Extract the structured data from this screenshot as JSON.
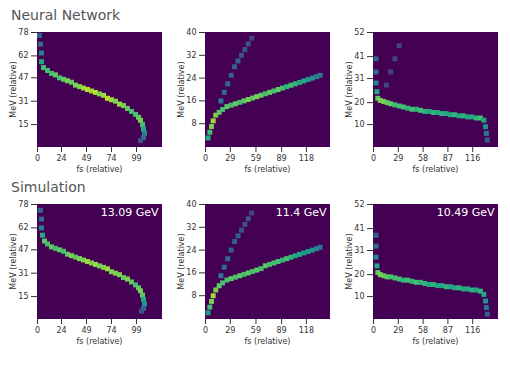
{
  "chart_data": [
    {
      "type": "heatmap",
      "title": "Neural Network",
      "x_label": "fs (relative)",
      "y_label": "MeV (relative)",
      "xlim": [
        0,
        124
      ],
      "ylim": [
        0,
        78
      ],
      "xticks": [
        0,
        24,
        49,
        74,
        99
      ],
      "yticks": [
        15,
        31,
        47,
        62,
        78
      ],
      "color": "viridis",
      "color_range": [
        0,
        1
      ],
      "cells": [
        [
          2,
          76,
          0.3
        ],
        [
          3,
          70,
          0.35
        ],
        [
          4,
          64,
          0.45
        ],
        [
          4,
          58,
          0.6
        ],
        [
          6,
          54,
          0.7
        ],
        [
          10,
          52,
          0.7
        ],
        [
          14,
          50,
          0.7
        ],
        [
          18,
          49,
          0.75
        ],
        [
          22,
          47,
          0.7
        ],
        [
          26,
          46,
          0.75
        ],
        [
          30,
          45,
          0.8
        ],
        [
          34,
          44,
          0.75
        ],
        [
          38,
          42,
          0.8
        ],
        [
          42,
          41,
          0.8
        ],
        [
          46,
          40,
          0.85
        ],
        [
          50,
          39,
          0.9
        ],
        [
          54,
          38,
          0.85
        ],
        [
          58,
          37,
          0.9
        ],
        [
          62,
          36,
          0.8
        ],
        [
          66,
          35,
          0.85
        ],
        [
          70,
          33,
          0.9
        ],
        [
          74,
          32,
          0.85
        ],
        [
          78,
          31,
          0.8
        ],
        [
          82,
          29,
          0.85
        ],
        [
          86,
          28,
          0.8
        ],
        [
          90,
          26,
          0.75
        ],
        [
          94,
          24,
          0.7
        ],
        [
          98,
          22,
          0.7
        ],
        [
          101,
          20,
          0.75
        ],
        [
          103,
          18,
          0.8
        ],
        [
          105,
          15,
          0.7
        ],
        [
          106,
          12,
          0.6
        ],
        [
          107,
          9,
          0.45
        ],
        [
          106,
          6,
          0.35
        ],
        [
          103,
          4,
          0.25
        ]
      ]
    },
    {
      "type": "heatmap",
      "x_label": "fs (relative)",
      "y_label": "MeV (relative)",
      "xlim": [
        0,
        145
      ],
      "ylim": [
        0,
        40
      ],
      "xticks": [
        0,
        29,
        59,
        89,
        118
      ],
      "yticks": [
        8,
        16,
        24,
        32,
        40
      ],
      "color": "viridis",
      "color_range": [
        0,
        1
      ],
      "cells": [
        [
          3,
          3,
          0.6
        ],
        [
          5,
          5,
          0.7
        ],
        [
          7,
          7,
          0.8
        ],
        [
          9,
          9,
          0.85
        ],
        [
          12,
          11,
          0.8
        ],
        [
          16,
          12,
          0.75
        ],
        [
          20,
          13,
          0.7
        ],
        [
          25,
          14,
          0.75
        ],
        [
          30,
          14.5,
          0.7
        ],
        [
          35,
          15,
          0.75
        ],
        [
          40,
          15.5,
          0.7
        ],
        [
          45,
          16,
          0.75
        ],
        [
          50,
          16.5,
          0.8
        ],
        [
          55,
          17,
          0.75
        ],
        [
          60,
          17.5,
          0.8
        ],
        [
          65,
          18,
          0.75
        ],
        [
          70,
          18.5,
          0.7
        ],
        [
          75,
          19,
          0.75
        ],
        [
          80,
          19.5,
          0.7
        ],
        [
          85,
          20,
          0.75
        ],
        [
          90,
          20.5,
          0.7
        ],
        [
          95,
          21,
          0.65
        ],
        [
          100,
          21.5,
          0.7
        ],
        [
          105,
          22,
          0.65
        ],
        [
          110,
          22.5,
          0.6
        ],
        [
          115,
          23,
          0.6
        ],
        [
          120,
          23.5,
          0.55
        ],
        [
          125,
          24,
          0.5
        ],
        [
          130,
          24.5,
          0.45
        ],
        [
          134,
          25,
          0.4
        ],
        [
          18,
          16,
          0.4
        ],
        [
          22,
          19,
          0.35
        ],
        [
          26,
          22,
          0.35
        ],
        [
          30,
          25,
          0.3
        ],
        [
          34,
          28,
          0.3
        ],
        [
          38,
          30,
          0.3
        ],
        [
          42,
          32,
          0.25
        ],
        [
          46,
          34,
          0.25
        ],
        [
          50,
          36,
          0.25
        ],
        [
          54,
          38,
          0.2
        ]
      ]
    },
    {
      "type": "heatmap",
      "x_label": "fs (relative)",
      "y_label": "MeV (relative)",
      "xlim": [
        0,
        145
      ],
      "ylim": [
        0,
        52
      ],
      "xticks": [
        0,
        29,
        58,
        87,
        116
      ],
      "yticks": [
        10,
        20,
        31,
        41,
        52
      ],
      "color": "viridis",
      "color_range": [
        0,
        1
      ],
      "cells": [
        [
          3,
          40,
          0.3
        ],
        [
          3,
          34,
          0.35
        ],
        [
          3,
          29,
          0.45
        ],
        [
          4,
          25,
          0.6
        ],
        [
          5,
          22,
          0.75
        ],
        [
          8,
          21,
          0.8
        ],
        [
          12,
          20.5,
          0.8
        ],
        [
          16,
          20,
          0.75
        ],
        [
          20,
          19.5,
          0.75
        ],
        [
          25,
          19,
          0.7
        ],
        [
          30,
          18.5,
          0.7
        ],
        [
          35,
          18,
          0.7
        ],
        [
          40,
          17.5,
          0.65
        ],
        [
          45,
          17,
          0.7
        ],
        [
          50,
          17,
          0.65
        ],
        [
          55,
          16.5,
          0.7
        ],
        [
          60,
          16,
          0.65
        ],
        [
          65,
          16,
          0.6
        ],
        [
          70,
          15.5,
          0.65
        ],
        [
          75,
          15.5,
          0.6
        ],
        [
          80,
          15,
          0.65
        ],
        [
          85,
          15,
          0.6
        ],
        [
          90,
          14.5,
          0.6
        ],
        [
          95,
          14.5,
          0.65
        ],
        [
          100,
          14,
          0.6
        ],
        [
          105,
          14,
          0.65
        ],
        [
          110,
          13.5,
          0.6
        ],
        [
          115,
          13.5,
          0.6
        ],
        [
          120,
          13,
          0.65
        ],
        [
          125,
          13,
          0.7
        ],
        [
          129,
          12,
          0.6
        ],
        [
          131,
          9,
          0.5
        ],
        [
          132,
          6,
          0.4
        ],
        [
          133,
          3,
          0.3
        ],
        [
          15,
          28,
          0.2
        ],
        [
          20,
          34,
          0.2
        ],
        [
          25,
          40,
          0.2
        ],
        [
          30,
          46,
          0.2
        ]
      ]
    },
    {
      "type": "heatmap",
      "title": "Simulation",
      "annotation": "13.09 GeV",
      "x_label": "fs (relative)",
      "y_label": "MeV (relative)",
      "xlim": [
        0,
        124
      ],
      "ylim": [
        0,
        78
      ],
      "xticks": [
        0,
        24,
        49,
        74,
        99
      ],
      "yticks": [
        15,
        31,
        47,
        62,
        78
      ],
      "color": "viridis",
      "color_range": [
        0,
        1
      ],
      "cells": [
        [
          3,
          74,
          0.3
        ],
        [
          4,
          68,
          0.35
        ],
        [
          4,
          62,
          0.45
        ],
        [
          5,
          57,
          0.6
        ],
        [
          7,
          53,
          0.75
        ],
        [
          10,
          51,
          0.7
        ],
        [
          14,
          49,
          0.75
        ],
        [
          18,
          48,
          0.7
        ],
        [
          22,
          47,
          0.75
        ],
        [
          26,
          46,
          0.7
        ],
        [
          30,
          44,
          0.75
        ],
        [
          34,
          43,
          0.8
        ],
        [
          38,
          42,
          0.75
        ],
        [
          42,
          41,
          0.8
        ],
        [
          46,
          40,
          0.8
        ],
        [
          50,
          39,
          0.85
        ],
        [
          54,
          38,
          0.8
        ],
        [
          58,
          37,
          0.85
        ],
        [
          62,
          36,
          0.8
        ],
        [
          66,
          35,
          0.8
        ],
        [
          70,
          34,
          0.85
        ],
        [
          74,
          32,
          0.8
        ],
        [
          78,
          31,
          0.8
        ],
        [
          82,
          30,
          0.8
        ],
        [
          86,
          28,
          0.75
        ],
        [
          90,
          27,
          0.8
        ],
        [
          94,
          25,
          0.75
        ],
        [
          98,
          23,
          0.7
        ],
        [
          101,
          21,
          0.75
        ],
        [
          103,
          19,
          0.8
        ],
        [
          105,
          16,
          0.75
        ],
        [
          106,
          13,
          0.6
        ],
        [
          107,
          10,
          0.5
        ],
        [
          106,
          7,
          0.35
        ],
        [
          104,
          5,
          0.25
        ]
      ]
    },
    {
      "type": "heatmap",
      "annotation": "11.4 GeV",
      "x_label": "fs (relative)",
      "y_label": "MeV (relative)",
      "xlim": [
        0,
        145
      ],
      "ylim": [
        0,
        40
      ],
      "xticks": [
        0,
        29,
        59,
        89,
        118
      ],
      "yticks": [
        8,
        16,
        24,
        32,
        40
      ],
      "color": "viridis",
      "color_range": [
        0,
        1
      ],
      "cells": [
        [
          3,
          2,
          0.55
        ],
        [
          5,
          4,
          0.7
        ],
        [
          7,
          6,
          0.8
        ],
        [
          9,
          8,
          0.85
        ],
        [
          12,
          10,
          0.8
        ],
        [
          16,
          11.5,
          0.75
        ],
        [
          20,
          12.5,
          0.7
        ],
        [
          25,
          13.5,
          0.7
        ],
        [
          30,
          14,
          0.75
        ],
        [
          35,
          14.5,
          0.7
        ],
        [
          40,
          15,
          0.75
        ],
        [
          45,
          15.5,
          0.7
        ],
        [
          50,
          16,
          0.75
        ],
        [
          55,
          16.5,
          0.7
        ],
        [
          60,
          17,
          0.75
        ],
        [
          65,
          17.5,
          0.7
        ],
        [
          70,
          18.5,
          0.75
        ],
        [
          75,
          19,
          0.7
        ],
        [
          80,
          19.5,
          0.7
        ],
        [
          85,
          20,
          0.7
        ],
        [
          90,
          20.5,
          0.65
        ],
        [
          95,
          21,
          0.7
        ],
        [
          100,
          21.5,
          0.65
        ],
        [
          105,
          22,
          0.6
        ],
        [
          110,
          22.5,
          0.6
        ],
        [
          115,
          23,
          0.55
        ],
        [
          120,
          23.5,
          0.55
        ],
        [
          125,
          24,
          0.5
        ],
        [
          130,
          24.5,
          0.45
        ],
        [
          134,
          25,
          0.4
        ],
        [
          18,
          15,
          0.4
        ],
        [
          22,
          18,
          0.35
        ],
        [
          26,
          21,
          0.35
        ],
        [
          30,
          24,
          0.3
        ],
        [
          34,
          27,
          0.3
        ],
        [
          38,
          29,
          0.3
        ],
        [
          42,
          31,
          0.25
        ],
        [
          46,
          33,
          0.25
        ],
        [
          50,
          35,
          0.25
        ],
        [
          54,
          37,
          0.2
        ]
      ]
    },
    {
      "type": "heatmap",
      "annotation": "10.49 GeV",
      "x_label": "fs (relative)",
      "y_label": "MeV (relative)",
      "xlim": [
        0,
        145
      ],
      "ylim": [
        0,
        52
      ],
      "xticks": [
        0,
        29,
        58,
        87,
        116
      ],
      "yticks": [
        10,
        20,
        31,
        41,
        52
      ],
      "color": "viridis",
      "color_range": [
        0,
        1
      ],
      "cells": [
        [
          3,
          38,
          0.3
        ],
        [
          3,
          33,
          0.35
        ],
        [
          3,
          28,
          0.45
        ],
        [
          4,
          24,
          0.6
        ],
        [
          5,
          21,
          0.75
        ],
        [
          8,
          20,
          0.8
        ],
        [
          12,
          19.5,
          0.75
        ],
        [
          16,
          19,
          0.75
        ],
        [
          20,
          19,
          0.7
        ],
        [
          25,
          18.5,
          0.7
        ],
        [
          30,
          18,
          0.7
        ],
        [
          35,
          17.5,
          0.65
        ],
        [
          40,
          17.5,
          0.7
        ],
        [
          45,
          17,
          0.65
        ],
        [
          50,
          16.5,
          0.7
        ],
        [
          55,
          16.5,
          0.65
        ],
        [
          60,
          16,
          0.65
        ],
        [
          65,
          15.5,
          0.6
        ],
        [
          70,
          15.5,
          0.65
        ],
        [
          75,
          15,
          0.6
        ],
        [
          80,
          15,
          0.6
        ],
        [
          85,
          14.5,
          0.65
        ],
        [
          90,
          14.5,
          0.6
        ],
        [
          95,
          14,
          0.6
        ],
        [
          100,
          14,
          0.65
        ],
        [
          105,
          13.5,
          0.6
        ],
        [
          110,
          13.5,
          0.6
        ],
        [
          115,
          13,
          0.65
        ],
        [
          120,
          13,
          0.6
        ],
        [
          125,
          12.5,
          0.65
        ],
        [
          129,
          11,
          0.6
        ],
        [
          131,
          8,
          0.5
        ],
        [
          132,
          5,
          0.4
        ],
        [
          133,
          2,
          0.3
        ]
      ]
    }
  ]
}
